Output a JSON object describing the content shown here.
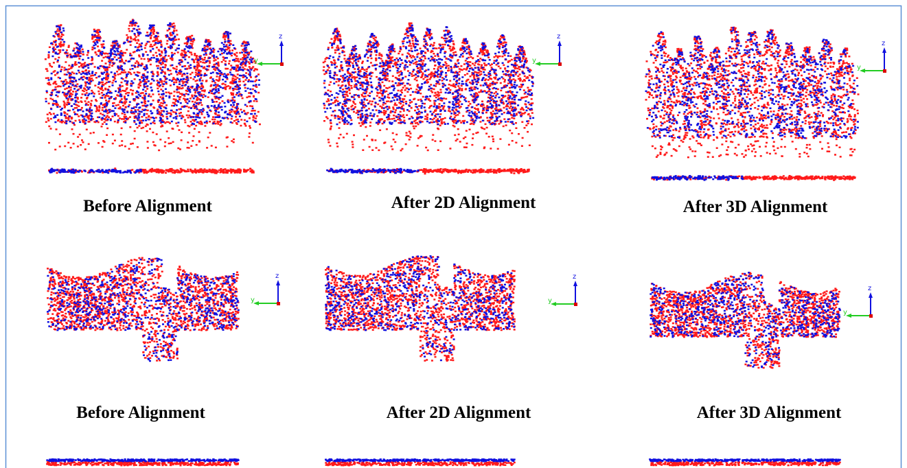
{
  "figure": {
    "rows": [
      {
        "captions": [
          "Before Alignment",
          "After 2D Alignment",
          "After 3D Alignment"
        ]
      },
      {
        "captions": [
          "Before Alignment",
          "After 2D Alignment",
          "After 3D Alignment"
        ]
      }
    ],
    "triad": {
      "vertical": "z",
      "horizontal": "y"
    }
  }
}
